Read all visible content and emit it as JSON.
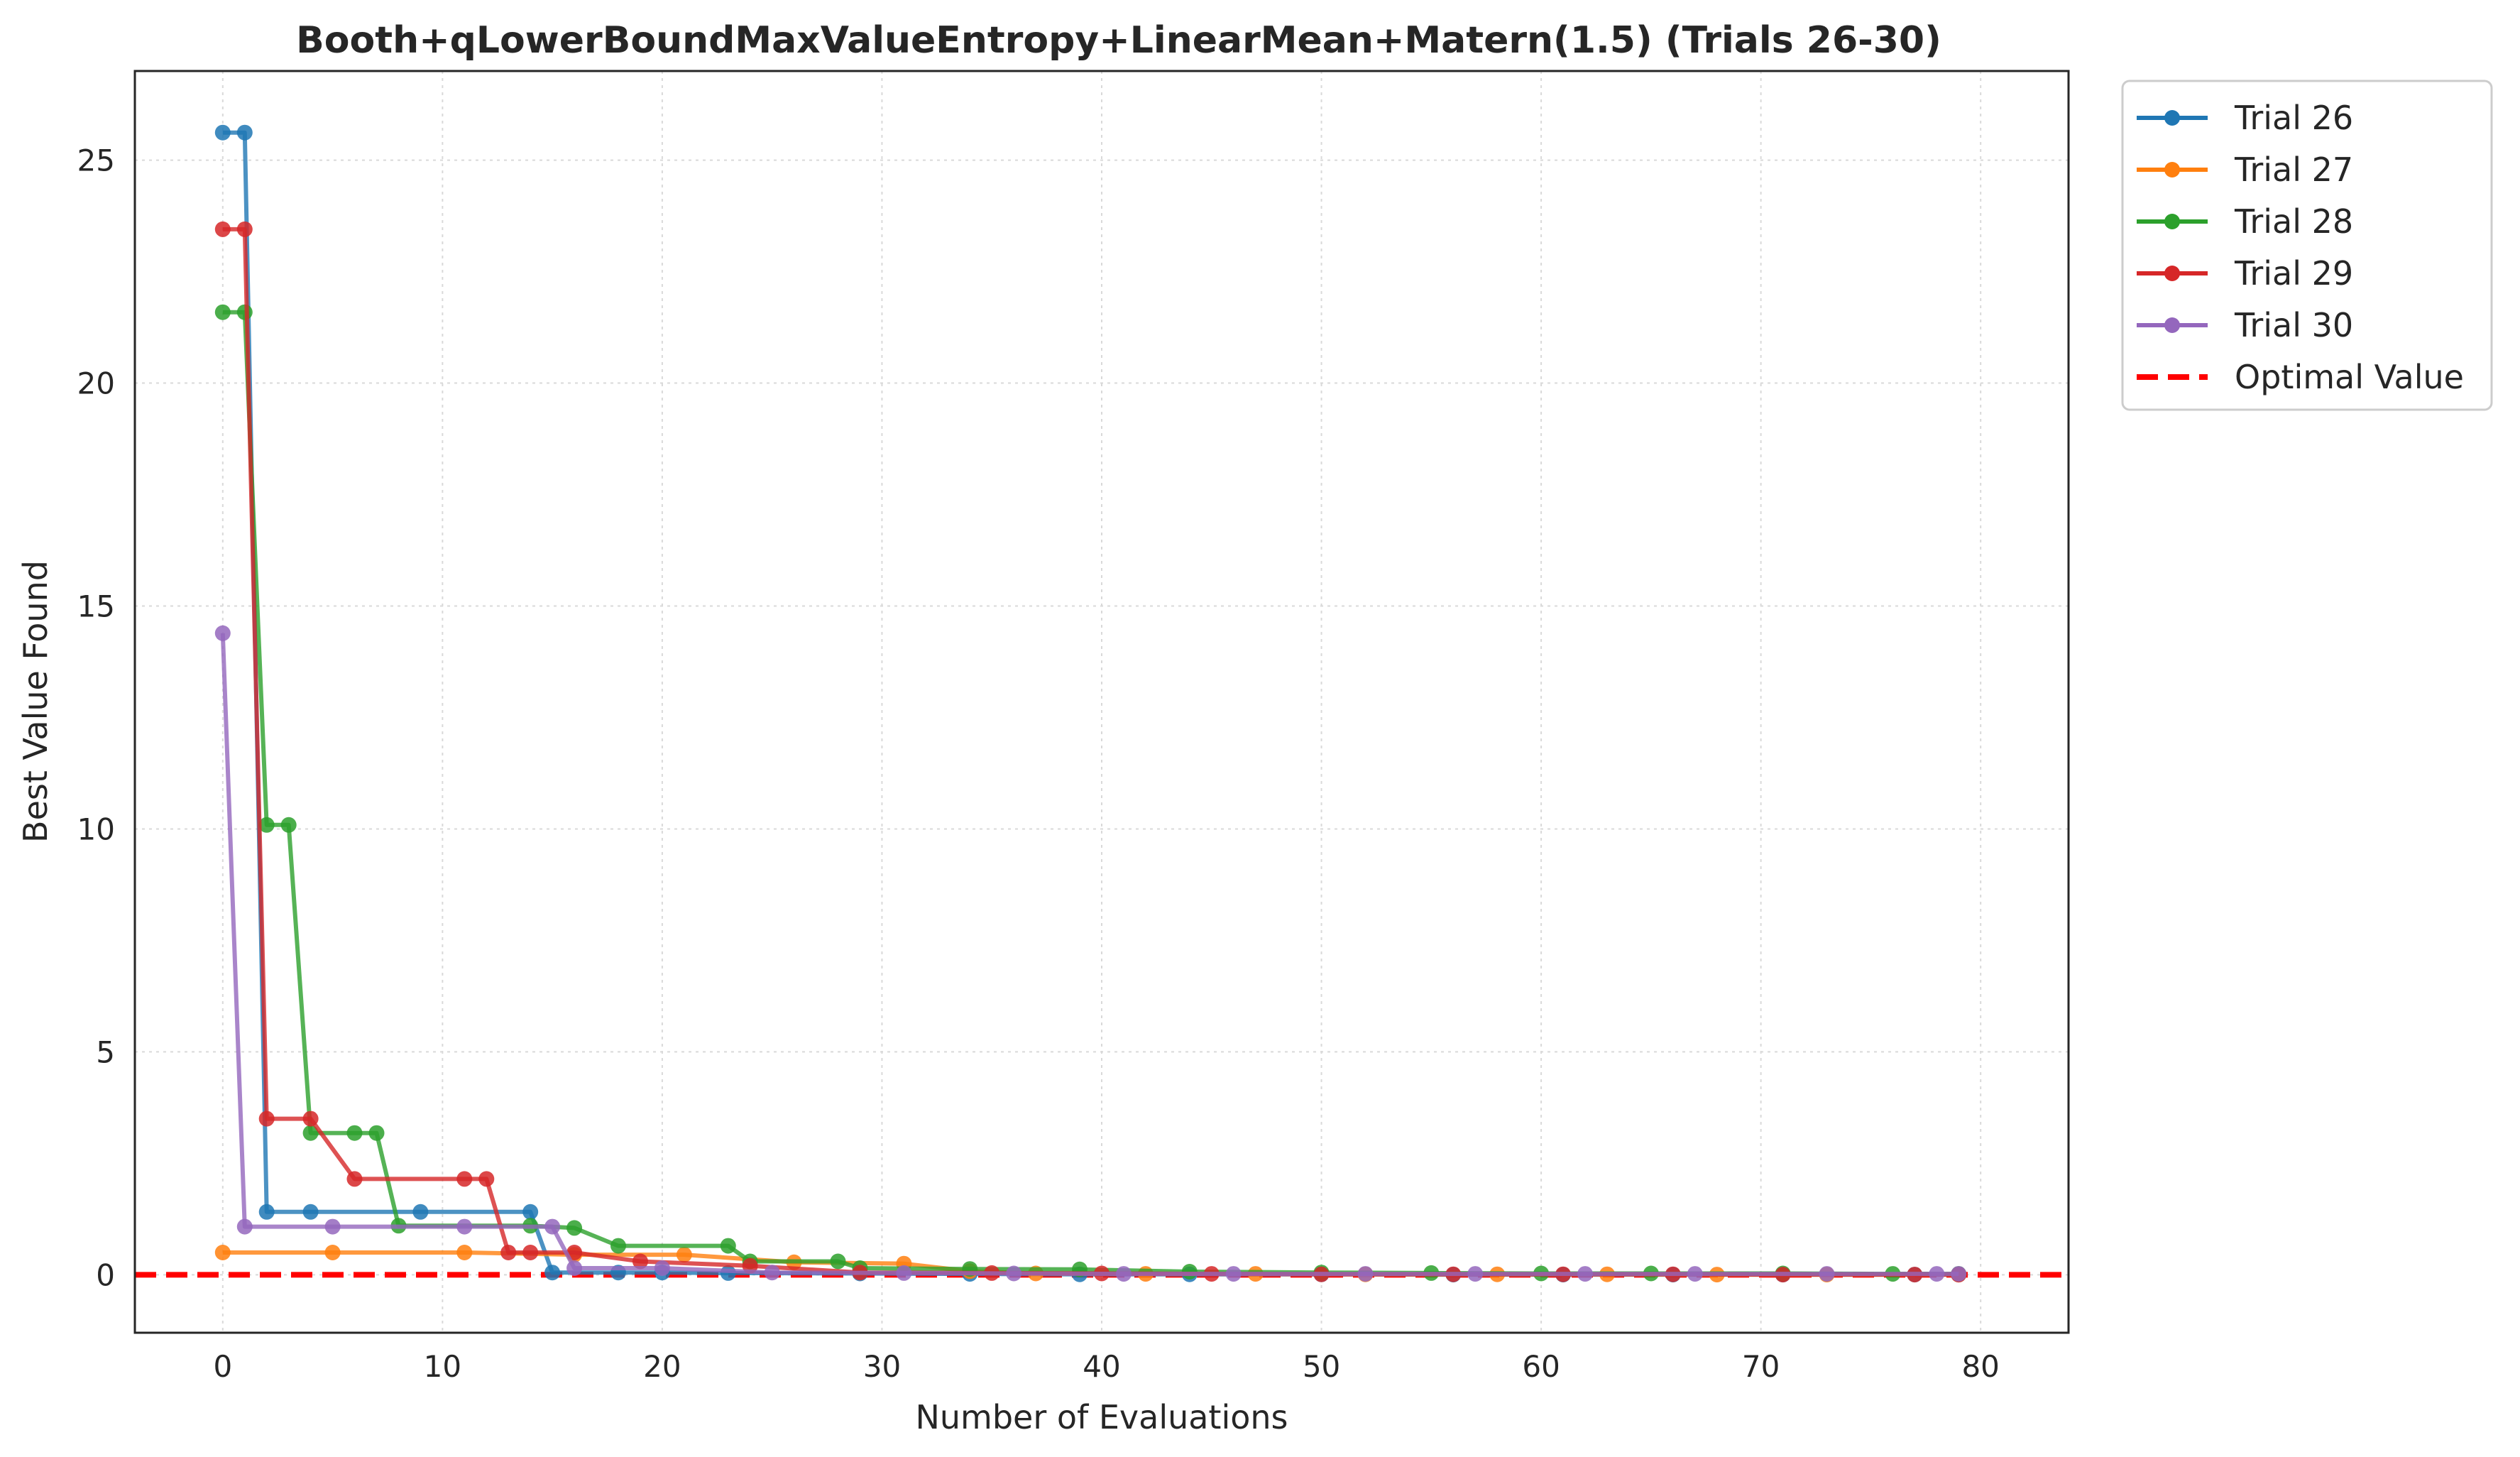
{
  "chart_data": {
    "type": "line",
    "title": "Booth+qLowerBoundMaxValueEntropy+LinearMean+Matern(1.5) (Trials 26-30)",
    "xlabel": "Number of Evaluations",
    "ylabel": "Best Value Found",
    "xlim": [
      -4,
      84
    ],
    "ylim": [
      -1.3,
      27.0
    ],
    "xticks": [
      0,
      10,
      20,
      30,
      40,
      50,
      60,
      70,
      80
    ],
    "yticks": [
      0,
      5,
      10,
      15,
      20,
      25
    ],
    "grid": true,
    "legend_position": "outside top-right",
    "series": [
      {
        "name": "Trial 26",
        "color": "#1f77b4",
        "points": [
          [
            0,
            25.62
          ],
          [
            1,
            25.62
          ],
          [
            2,
            1.41
          ],
          [
            4,
            1.41
          ],
          [
            9,
            1.41
          ],
          [
            14,
            1.41
          ],
          [
            15,
            0.05
          ],
          [
            18,
            0.05
          ],
          [
            20,
            0.05
          ],
          [
            23,
            0.04
          ],
          [
            29,
            0.03
          ],
          [
            34,
            0.02
          ],
          [
            39,
            0.01
          ],
          [
            44,
            0.01
          ],
          [
            50,
            0.01
          ],
          [
            56,
            0.005
          ],
          [
            61,
            0.005
          ],
          [
            66,
            0.005
          ],
          [
            71,
            0.005
          ],
          [
            77,
            0.005
          ],
          [
            79,
            0.005
          ]
        ]
      },
      {
        "name": "Trial 27",
        "color": "#ff7f0e",
        "points": [
          [
            0,
            0.5
          ],
          [
            5,
            0.5
          ],
          [
            11,
            0.5
          ],
          [
            16,
            0.45
          ],
          [
            21,
            0.45
          ],
          [
            26,
            0.28
          ],
          [
            31,
            0.25
          ],
          [
            34,
            0.08
          ],
          [
            37,
            0.03
          ],
          [
            42,
            0.02
          ],
          [
            47,
            0.02
          ],
          [
            52,
            0.01
          ],
          [
            58,
            0.01
          ],
          [
            63,
            0.01
          ],
          [
            68,
            0.005
          ],
          [
            73,
            0.005
          ],
          [
            79,
            0.005
          ]
        ]
      },
      {
        "name": "Trial 28",
        "color": "#2ca02c",
        "points": [
          [
            0,
            21.59
          ],
          [
            1,
            21.59
          ],
          [
            2,
            10.09
          ],
          [
            3,
            10.09
          ],
          [
            4,
            3.18
          ],
          [
            6,
            3.18
          ],
          [
            7,
            3.18
          ],
          [
            8,
            1.1
          ],
          [
            14,
            1.1
          ],
          [
            16,
            1.05
          ],
          [
            18,
            0.65
          ],
          [
            23,
            0.65
          ],
          [
            24,
            0.3
          ],
          [
            28,
            0.3
          ],
          [
            29,
            0.15
          ],
          [
            34,
            0.13
          ],
          [
            39,
            0.12
          ],
          [
            44,
            0.07
          ],
          [
            50,
            0.05
          ],
          [
            55,
            0.04
          ],
          [
            60,
            0.03
          ],
          [
            65,
            0.03
          ],
          [
            71,
            0.03
          ],
          [
            76,
            0.02
          ],
          [
            79,
            0.02
          ]
        ]
      },
      {
        "name": "Trial 29",
        "color": "#d62728",
        "points": [
          [
            0,
            23.45
          ],
          [
            1,
            23.45
          ],
          [
            2,
            3.5
          ],
          [
            4,
            3.5
          ],
          [
            6,
            2.15
          ],
          [
            11,
            2.15
          ],
          [
            12,
            2.15
          ],
          [
            13,
            0.5
          ],
          [
            14,
            0.5
          ],
          [
            16,
            0.5
          ],
          [
            19,
            0.3
          ],
          [
            24,
            0.2
          ],
          [
            29,
            0.05
          ],
          [
            35,
            0.04
          ],
          [
            40,
            0.03
          ],
          [
            45,
            0.02
          ],
          [
            50,
            0.01
          ],
          [
            56,
            0.01
          ],
          [
            61,
            0.01
          ],
          [
            66,
            0.01
          ],
          [
            71,
            0.005
          ],
          [
            77,
            0.005
          ],
          [
            79,
            0.005
          ]
        ]
      },
      {
        "name": "Trial 30",
        "color": "#9467bd",
        "points": [
          [
            0,
            14.39
          ],
          [
            1,
            1.08
          ],
          [
            5,
            1.08
          ],
          [
            11,
            1.08
          ],
          [
            15,
            1.08
          ],
          [
            16,
            0.15
          ],
          [
            20,
            0.15
          ],
          [
            25,
            0.05
          ],
          [
            31,
            0.04
          ],
          [
            36,
            0.03
          ],
          [
            41,
            0.02
          ],
          [
            46,
            0.02
          ],
          [
            52,
            0.02
          ],
          [
            57,
            0.02
          ],
          [
            62,
            0.02
          ],
          [
            67,
            0.02
          ],
          [
            73,
            0.02
          ],
          [
            78,
            0.02
          ],
          [
            79,
            0.02
          ]
        ]
      }
    ],
    "reference_line": {
      "name": "Optimal Value",
      "y": 0,
      "color": "#ff0000",
      "style": "dashed"
    }
  }
}
